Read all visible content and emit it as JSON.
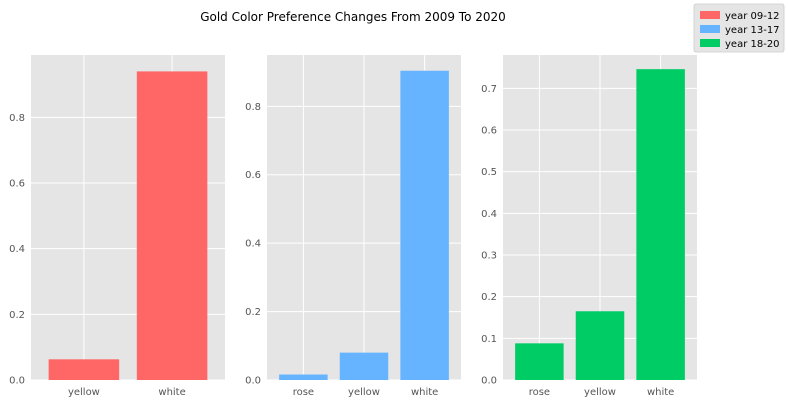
{
  "figure": {
    "title": "Gold Color Preference Changes From 2009 To 2020",
    "background": "#ffffff",
    "axes_facecolor": "#e5e5e5",
    "grid_color": "#ffffff",
    "tick_color": "#555555"
  },
  "legend": {
    "placement": "top-right",
    "entries": [
      {
        "label": "year 09-12",
        "color": "#ff6666"
      },
      {
        "label": "year 13-17",
        "color": "#66b3ff"
      },
      {
        "label": "year 18-20",
        "color": "#00cc66"
      }
    ]
  },
  "chart_data": [
    {
      "type": "bar",
      "series_name": "year 09-12",
      "color": "#ff6666",
      "categories": [
        "yellow",
        "white"
      ],
      "values": [
        0.063,
        0.94
      ],
      "ylim": [
        0,
        0.99
      ],
      "yticks": [
        0.0,
        0.2,
        0.4,
        0.6,
        0.8
      ],
      "ytick_labels": [
        "0.0",
        "0.2",
        "0.4",
        "0.6",
        "0.8"
      ],
      "grid": true
    },
    {
      "type": "bar",
      "series_name": "year 13-17",
      "color": "#66b3ff",
      "categories": [
        "rose",
        "yellow",
        "white"
      ],
      "values": [
        0.016,
        0.08,
        0.904
      ],
      "ylim": [
        0,
        0.95
      ],
      "yticks": [
        0.0,
        0.2,
        0.4,
        0.6,
        0.8
      ],
      "ytick_labels": [
        "0.0",
        "0.2",
        "0.4",
        "0.6",
        "0.8"
      ],
      "grid": true
    },
    {
      "type": "bar",
      "series_name": "year 18-20",
      "color": "#00cc66",
      "categories": [
        "rose",
        "yellow",
        "white"
      ],
      "values": [
        0.088,
        0.165,
        0.746
      ],
      "ylim": [
        0,
        0.78
      ],
      "yticks": [
        0.0,
        0.1,
        0.2,
        0.3,
        0.4,
        0.5,
        0.6,
        0.7
      ],
      "ytick_labels": [
        "0.0",
        "0.1",
        "0.2",
        "0.3",
        "0.4",
        "0.5",
        "0.6",
        "0.7"
      ],
      "grid": true
    }
  ]
}
